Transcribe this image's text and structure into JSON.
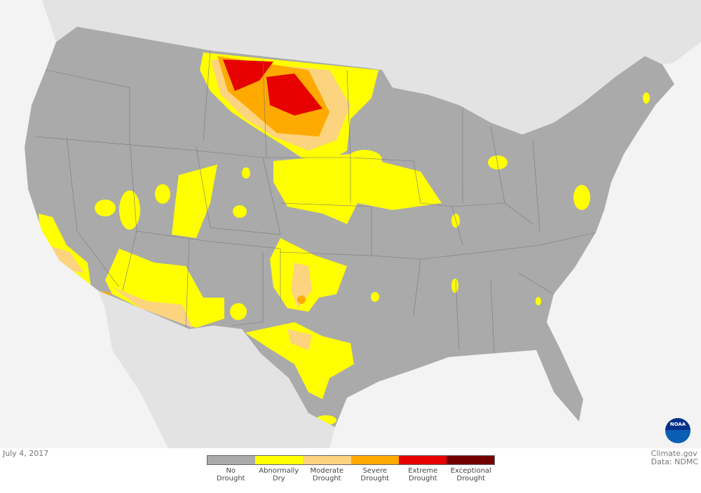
{
  "map": {
    "date": "July 4, 2017",
    "credit_line1": "Climate.gov",
    "credit_line2": "Data: NDMC",
    "logo_text": "NOAA"
  },
  "legend": [
    {
      "label1": "No",
      "label2": "Drought",
      "color": "#aaaaaa"
    },
    {
      "label1": "Abnormally",
      "label2": "Dry",
      "color": "#ffff00"
    },
    {
      "label1": "Moderate",
      "label2": "Drought",
      "color": "#fcd37f"
    },
    {
      "label1": "Severe",
      "label2": "Drought",
      "color": "#ffaa00"
    },
    {
      "label1": "Extreme",
      "label2": "Drought",
      "color": "#e60000"
    },
    {
      "label1": "Exceptional",
      "label2": "Drought",
      "color": "#730000"
    }
  ]
}
